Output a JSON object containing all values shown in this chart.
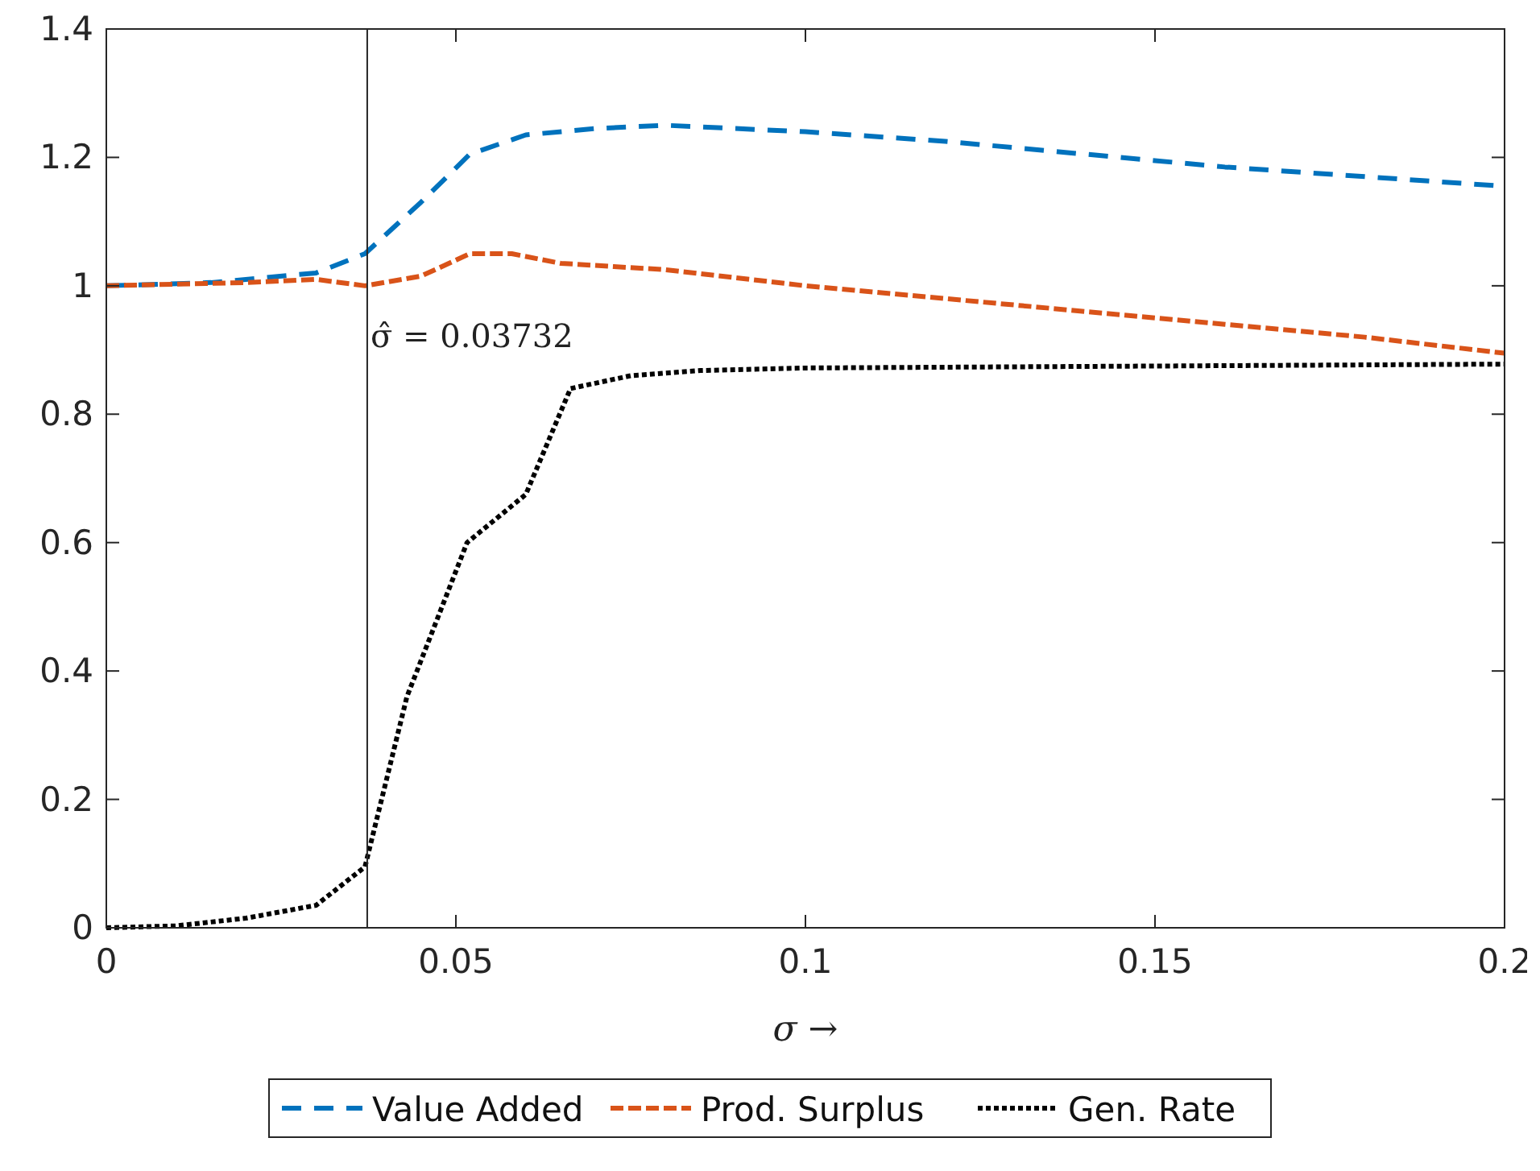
{
  "chart_data": {
    "type": "line",
    "xlabel": "σ →",
    "xlim": [
      0,
      0.2
    ],
    "xticks": [
      0,
      0.05,
      0.1,
      0.15,
      0.2
    ],
    "ylim": [
      0,
      1.4
    ],
    "yticks": [
      0,
      0.2,
      0.4,
      0.6,
      0.8,
      1,
      1.2,
      1.4
    ],
    "grid": false,
    "legend": "bottom",
    "ref_lines": [
      {
        "axis": "x",
        "value": 0.03732,
        "label": "σ̂ = 0.03732",
        "color": "#262626",
        "line_style": "solid"
      }
    ],
    "series": [
      {
        "name": "Value Added",
        "color": "#0072bd",
        "line_style": "dashed",
        "x": [
          0,
          0.015,
          0.03,
          0.037,
          0.045,
          0.052,
          0.06,
          0.07,
          0.08,
          0.09,
          0.1,
          0.12,
          0.14,
          0.16,
          0.18,
          0.2
        ],
        "values": [
          1,
          1.005,
          1.02,
          1.05,
          1.13,
          1.205,
          1.235,
          1.245,
          1.25,
          1.245,
          1.24,
          1.225,
          1.205,
          1.185,
          1.17,
          1.155
        ]
      },
      {
        "name": "Prod. Surplus",
        "color": "#d95319",
        "line_style": "dashdot",
        "x": [
          0,
          0.02,
          0.03,
          0.037,
          0.045,
          0.052,
          0.058,
          0.065,
          0.08,
          0.1,
          0.12,
          0.14,
          0.16,
          0.18,
          0.2
        ],
        "values": [
          1,
          1.005,
          1.01,
          1,
          1.015,
          1.05,
          1.05,
          1.035,
          1.025,
          1,
          0.98,
          0.96,
          0.94,
          0.92,
          0.895
        ]
      },
      {
        "name": "Gen. Rate",
        "color": "#000000",
        "line_style": "dotted",
        "x": [
          0,
          0.01,
          0.02,
          0.03,
          0.037,
          0.043,
          0.0516,
          0.06,
          0.0664,
          0.075,
          0.085,
          0.1,
          0.15,
          0.2
        ],
        "values": [
          0,
          0.003,
          0.015,
          0.035,
          0.095,
          0.36,
          0.6,
          0.675,
          0.84,
          0.86,
          0.868,
          0.872,
          0.875,
          0.878
        ]
      }
    ]
  }
}
